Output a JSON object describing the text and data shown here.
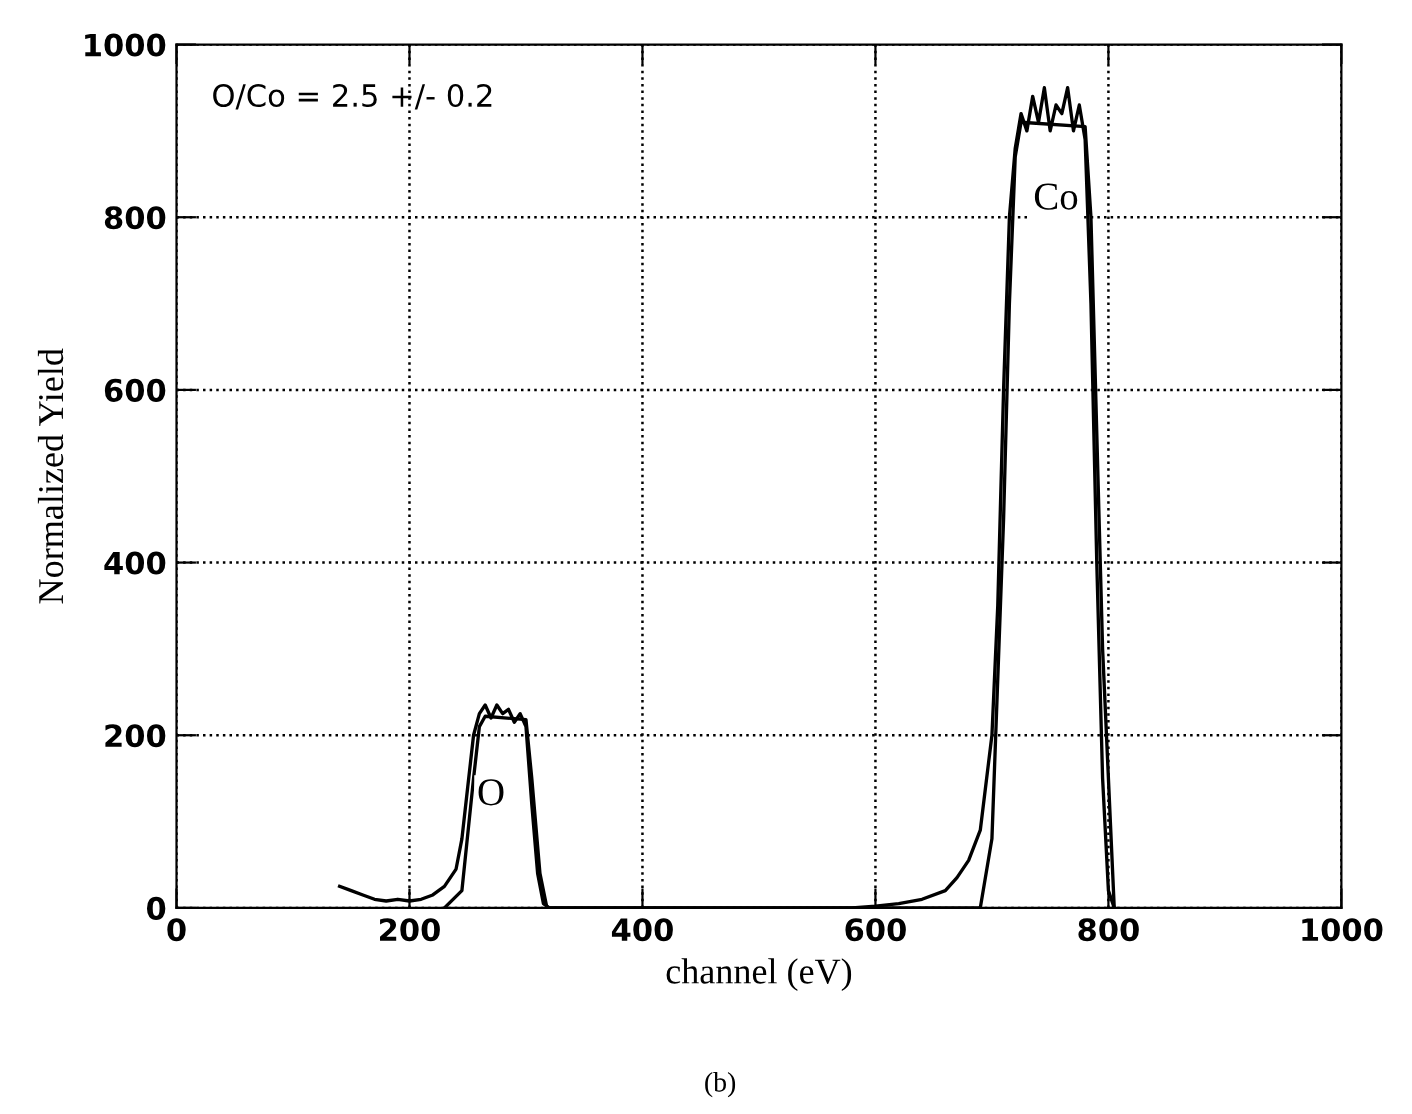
{
  "chart_data": {
    "type": "line",
    "xlabel": "channel (eV)",
    "ylabel": "Normalized Yield",
    "xlim": [
      0,
      1000
    ],
    "ylim": [
      0,
      1000
    ],
    "xticks": [
      0,
      200,
      400,
      600,
      800,
      1000
    ],
    "yticks": [
      0,
      200,
      400,
      600,
      800,
      1000
    ],
    "grid": true,
    "marker": "none",
    "line_style": "solid",
    "series": [
      {
        "color": "#000000",
        "x": [
          140,
          150,
          160,
          170,
          180,
          190,
          200,
          210,
          220,
          230,
          240,
          245,
          250,
          255,
          260,
          265,
          270,
          275,
          280,
          285,
          290,
          295,
          300,
          305,
          310,
          315,
          320,
          400,
          500,
          580,
          600,
          620,
          640,
          660,
          670,
          680,
          690,
          700,
          705,
          710,
          715,
          720,
          725,
          730,
          735,
          740,
          745,
          750,
          755,
          760,
          765,
          770,
          775,
          780,
          785,
          790,
          795,
          800,
          805
        ],
        "values": [
          25,
          20,
          15,
          10,
          8,
          10,
          8,
          10,
          15,
          25,
          45,
          80,
          140,
          200,
          225,
          235,
          220,
          235,
          225,
          230,
          215,
          225,
          210,
          120,
          40,
          5,
          0,
          0,
          0,
          0,
          2,
          5,
          10,
          20,
          35,
          55,
          90,
          200,
          350,
          600,
          800,
          880,
          920,
          900,
          940,
          910,
          950,
          900,
          930,
          920,
          950,
          900,
          930,
          890,
          700,
          400,
          150,
          20,
          0
        ]
      },
      {
        "color": "#000000",
        "x": [
          230,
          245,
          255,
          260,
          265,
          300,
          305,
          312,
          318,
          500,
          690,
          700,
          710,
          715,
          720,
          725,
          780,
          785,
          795,
          805
        ],
        "values": [
          0,
          20,
          150,
          210,
          222,
          218,
          150,
          40,
          0,
          0,
          0,
          80,
          450,
          700,
          870,
          910,
          905,
          800,
          300,
          0
        ]
      }
    ],
    "annotations": [
      "O/Co = 2.5 +/- 0.2",
      {
        "text": "O",
        "x": 270,
        "y": 130
      },
      {
        "text": "Co",
        "x": 755,
        "y": 820
      },
      "(b)"
    ]
  }
}
